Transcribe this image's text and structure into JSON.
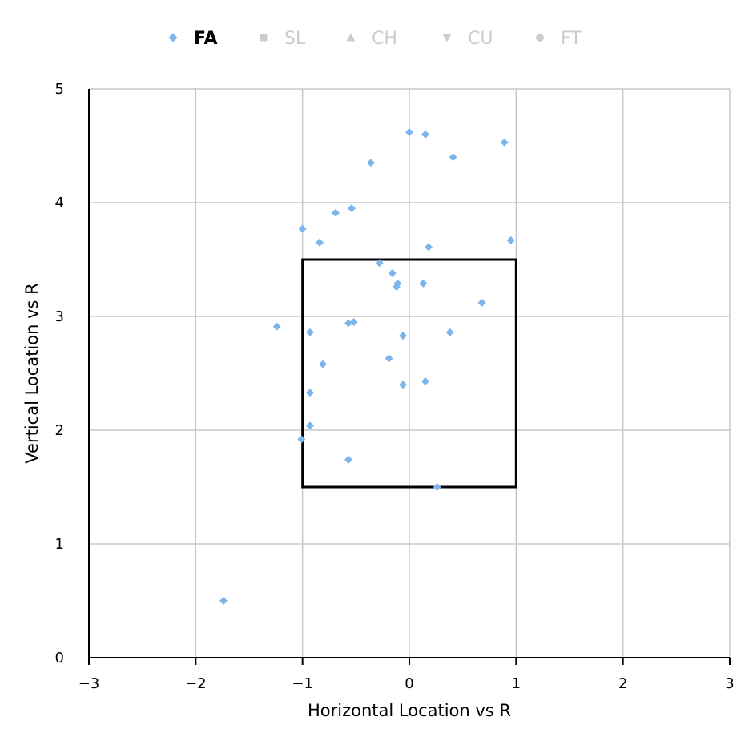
{
  "chart_data": {
    "type": "scatter",
    "xlabel": "Horizontal Location vs R",
    "ylabel": "Vertical Location vs R",
    "xlim": [
      -3,
      3
    ],
    "ylim": [
      0,
      5
    ],
    "x_ticks": [
      "−3",
      "−2",
      "−1",
      "0",
      "1",
      "2",
      "3"
    ],
    "y_ticks": [
      "0",
      "1",
      "2",
      "3",
      "4",
      "5"
    ],
    "grid": true,
    "legend_position": "top",
    "strike_zone": {
      "x": [
        -1,
        1
      ],
      "y": [
        1.5,
        3.5
      ]
    },
    "series": [
      {
        "name": "FA",
        "symbol": "diamond",
        "active": true,
        "color": "#7cb5ec",
        "points": [
          [
            0.0,
            4.62
          ],
          [
            0.15,
            4.6
          ],
          [
            0.89,
            4.53
          ],
          [
            0.41,
            4.4
          ],
          [
            -0.36,
            4.35
          ],
          [
            -0.69,
            3.91
          ],
          [
            -0.54,
            3.95
          ],
          [
            -1.0,
            3.77
          ],
          [
            -0.84,
            3.65
          ],
          [
            0.95,
            3.67
          ],
          [
            0.18,
            3.61
          ],
          [
            -0.28,
            3.47
          ],
          [
            -0.16,
            3.38
          ],
          [
            -0.11,
            3.29
          ],
          [
            -0.12,
            3.26
          ],
          [
            0.13,
            3.29
          ],
          [
            0.68,
            3.12
          ],
          [
            -1.24,
            2.91
          ],
          [
            -0.93,
            2.86
          ],
          [
            -0.57,
            2.94
          ],
          [
            -0.52,
            2.95
          ],
          [
            -0.06,
            2.83
          ],
          [
            0.38,
            2.86
          ],
          [
            -0.19,
            2.63
          ],
          [
            -0.81,
            2.58
          ],
          [
            -0.06,
            2.4
          ],
          [
            0.15,
            2.43
          ],
          [
            -0.93,
            2.33
          ],
          [
            -0.93,
            2.04
          ],
          [
            -1.01,
            1.92
          ],
          [
            -0.57,
            1.74
          ],
          [
            0.26,
            1.5
          ],
          [
            -1.74,
            0.5
          ]
        ]
      },
      {
        "name": "SL",
        "symbol": "square",
        "active": false,
        "color": "#cccccc",
        "points": []
      },
      {
        "name": "CH",
        "symbol": "triangle",
        "active": false,
        "color": "#cccccc",
        "points": []
      },
      {
        "name": "CU",
        "symbol": "triangle-down",
        "active": false,
        "color": "#cccccc",
        "points": []
      },
      {
        "name": "FT",
        "symbol": "circle",
        "active": false,
        "color": "#cccccc",
        "points": []
      }
    ]
  }
}
